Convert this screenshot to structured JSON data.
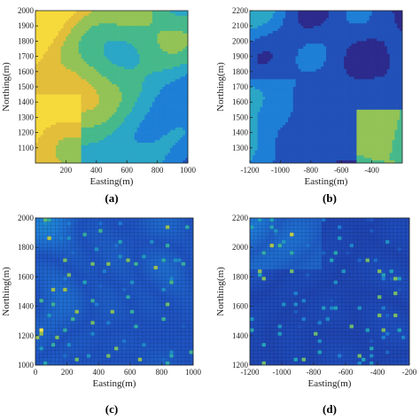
{
  "colors": {
    "contour_levels": [
      "#2c2a8c",
      "#2151b8",
      "#1e7fd6",
      "#2ba6c6",
      "#46b98b",
      "#93c356",
      "#e2be3a",
      "#f6d93b"
    ],
    "heat_low": "#1e2b8f",
    "heat_high": "#f4e44a",
    "axis": "#222222"
  },
  "chart_data": [
    {
      "id": "a",
      "type": "heatmap",
      "style": "filled-contour",
      "panel_label": "(a)",
      "xlabel": "Easting(m)",
      "ylabel": "Northing(m)",
      "xlim": [
        0,
        1000
      ],
      "ylim": [
        1000,
        2000
      ],
      "xticks": [
        200,
        400,
        600,
        800,
        1000
      ],
      "yticks": [
        1100,
        1200,
        1300,
        1400,
        1500,
        1600,
        1700,
        1800,
        1900,
        2000
      ],
      "levels": 8,
      "grid": false
    },
    {
      "id": "b",
      "type": "heatmap",
      "style": "filled-contour",
      "panel_label": "(b)",
      "xlabel": "Easting(m)",
      "ylabel": "Northing(m)",
      "xlim": [
        -1200,
        -200
      ],
      "ylim": [
        1200,
        2200
      ],
      "xticks": [
        -1200,
        -1000,
        -800,
        -600,
        -400
      ],
      "yticks": [
        1300,
        1400,
        1500,
        1600,
        1700,
        1800,
        1900,
        2000,
        2100,
        2200
      ],
      "levels": 8,
      "grid": false
    },
    {
      "id": "c",
      "type": "heatmap",
      "style": "pixel-grid",
      "panel_label": "(c)",
      "xlabel": "Easting(m)",
      "ylabel": "Northing(m)",
      "xlim": [
        0,
        1000
      ],
      "ylim": [
        1000,
        2000
      ],
      "xticks": [
        0,
        200,
        400,
        600,
        800,
        1000
      ],
      "yticks": [
        1000,
        1200,
        1400,
        1600,
        1800,
        2000
      ],
      "grid": true
    },
    {
      "id": "d",
      "type": "heatmap",
      "style": "pixel-grid",
      "panel_label": "(d)",
      "xlabel": "Easting(m)",
      "ylabel": "Northing(m)",
      "xlim": [
        -1200,
        -200
      ],
      "ylim": [
        1200,
        2200
      ],
      "xticks": [
        -1200,
        -1000,
        -800,
        -600,
        -400,
        -200
      ],
      "yticks": [
        1200,
        1400,
        1600,
        1800,
        2000,
        2200
      ],
      "grid": true
    }
  ]
}
